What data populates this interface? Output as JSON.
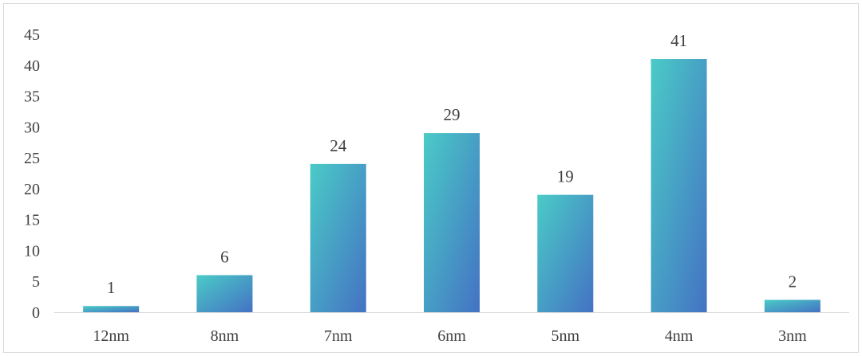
{
  "chart_data": {
    "type": "bar",
    "title": "",
    "xlabel": "",
    "ylabel": "",
    "categories": [
      "12nm",
      "8nm",
      "7nm",
      "6nm",
      "5nm",
      "4nm",
      "3nm"
    ],
    "values": [
      1,
      6,
      24,
      29,
      19,
      41,
      2
    ],
    "data_labels": [
      "1",
      "6",
      "24",
      "29",
      "19",
      "41",
      "2"
    ],
    "ylim": [
      0,
      45
    ],
    "yticks": [
      "0",
      "5",
      "10",
      "15",
      "20",
      "25",
      "30",
      "35",
      "40",
      "45"
    ],
    "grid": false,
    "legend": "none",
    "colors": {
      "bar_gradient_start": "#4ACBC6",
      "bar_gradient_end": "#4472C4",
      "axis_line": "#d9d9d9",
      "label_text": "#404040",
      "border": "#d9d9d9"
    }
  }
}
